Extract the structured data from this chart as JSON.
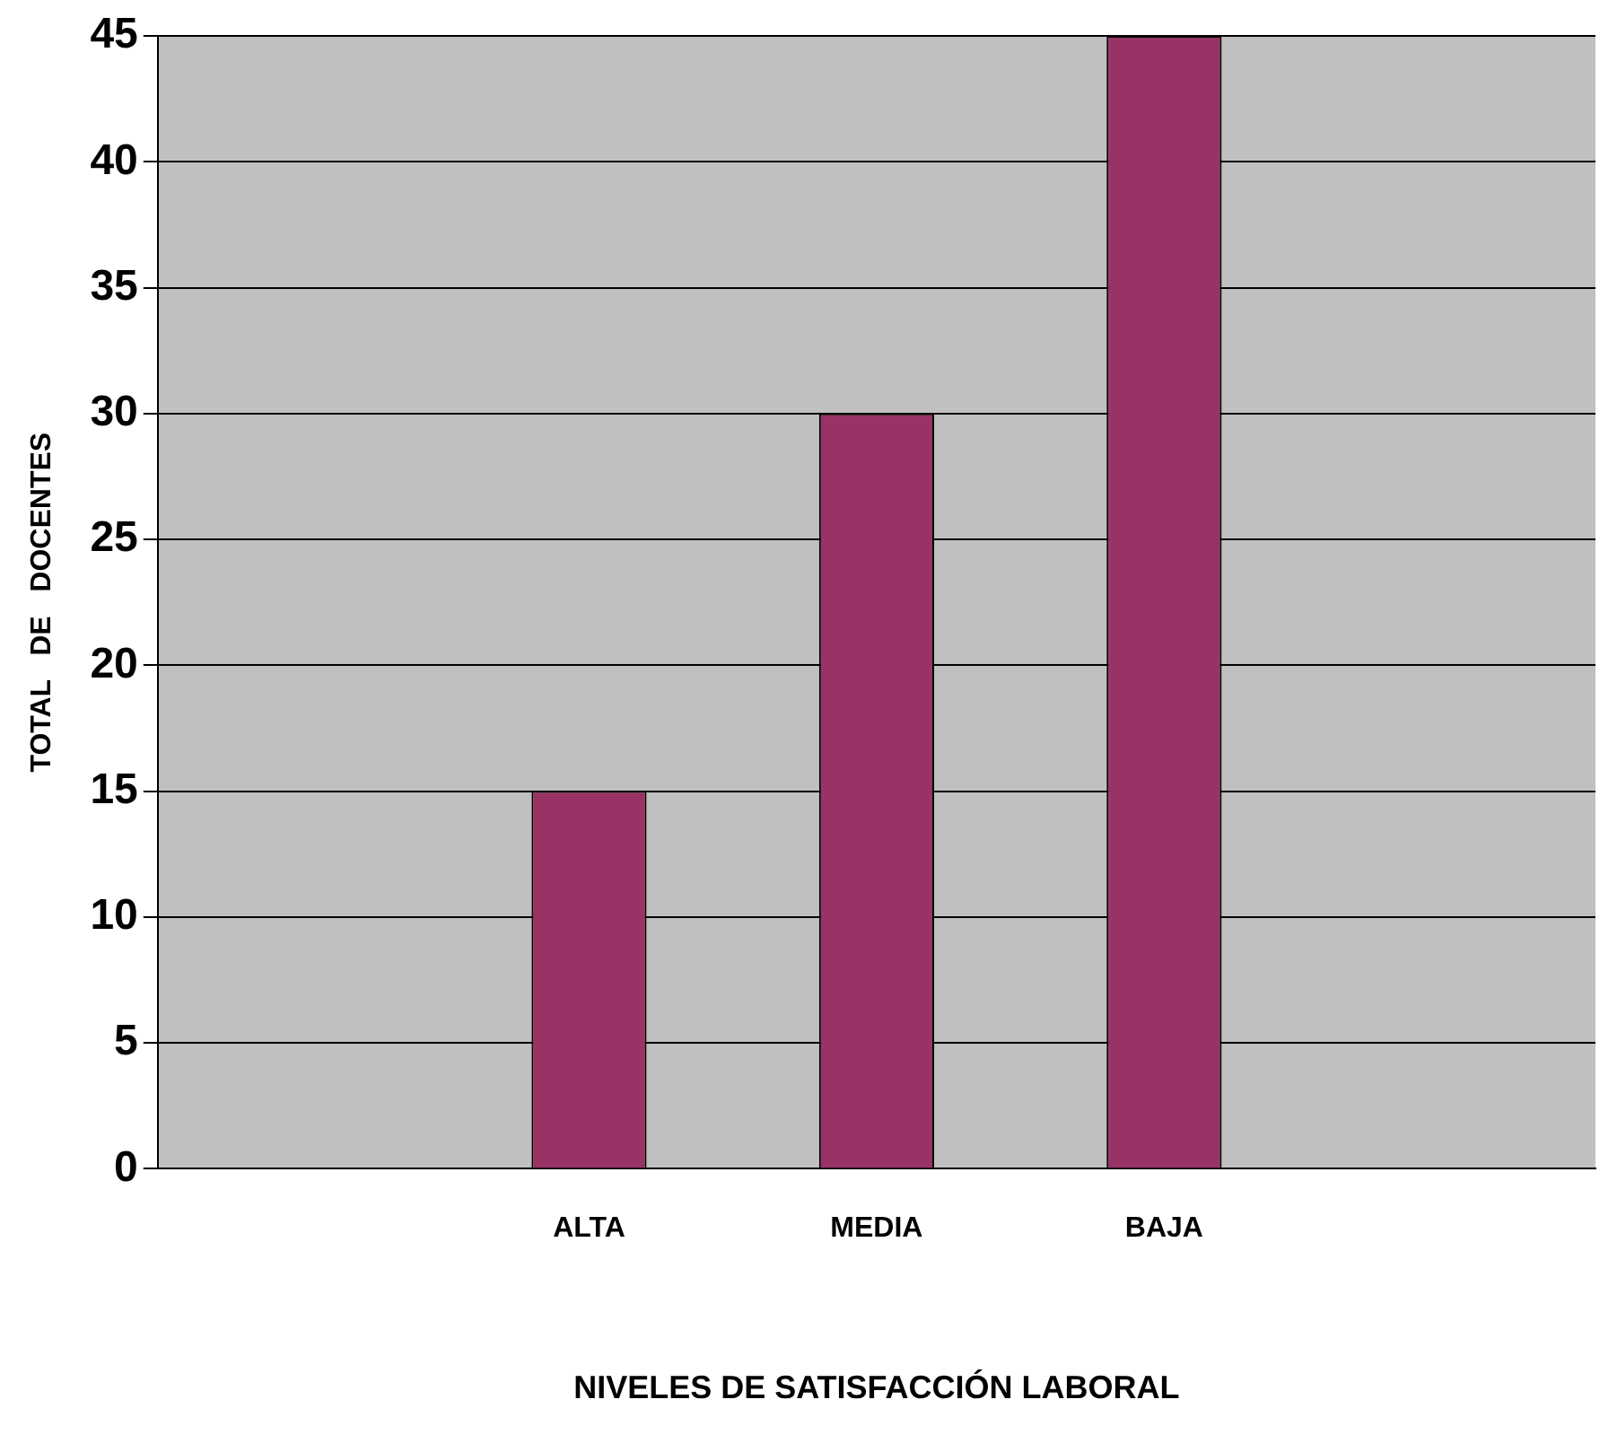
{
  "chart_data": {
    "type": "bar",
    "xlabel": "NIVELES DE SATISFACCIÓN LABORAL",
    "ylabel": "TOTAL   DE   DOCENTES",
    "categories": [
      null,
      "ALTA",
      "MEDIA",
      "BAJA",
      null
    ],
    "values": [
      null,
      15,
      30,
      45,
      null
    ],
    "color": "#993366",
    "ylim": [
      0,
      45
    ],
    "yticks": [
      0,
      5,
      10,
      15,
      20,
      25,
      30,
      35,
      40,
      45
    ],
    "grid": "y",
    "legend": false
  }
}
